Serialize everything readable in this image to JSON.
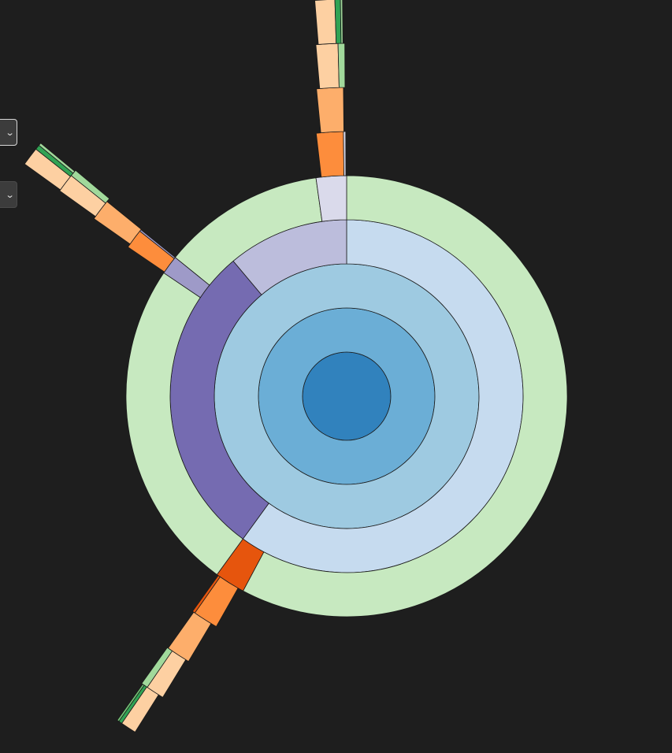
{
  "controls": [
    {
      "icon": "chevron-down-icon",
      "selected": ""
    },
    {
      "icon": "chevron-down-icon",
      "selected": ""
    }
  ],
  "chart_data": {
    "type": "sunburst",
    "title": "",
    "start_angle_deg": 0,
    "ring_width": 56,
    "root_radius": 56,
    "outline_color": "#1a1a1a",
    "colors": {
      "level0": "#3182bd",
      "level1": "#6baed6",
      "level2": "#9ecae1",
      "level3_blue": "#c6dbef",
      "level3_purple": "#bcbddc",
      "level4_green": "#c7e9c0",
      "purple_dark": "#756bb1",
      "purple_mid": "#9e9ac8",
      "purple_light": "#dadaeb",
      "orange_dark": "#e6550d",
      "orange": "#fd8d3c",
      "orange_light": "#fdae6b",
      "peach": "#fdd0a2",
      "green": "#31a354",
      "green_mid": "#74c476",
      "green_light": "#a1d99b"
    },
    "segments": [
      {
        "depth": 0,
        "start": 0,
        "end": 360,
        "color": "level0"
      },
      {
        "depth": 1,
        "start": 0,
        "end": 360,
        "color": "level1"
      },
      {
        "depth": 2,
        "start": 0,
        "end": 360,
        "color": "level2"
      },
      {
        "depth": 3,
        "start": 0,
        "end": 216,
        "color": "level3_blue"
      },
      {
        "depth": 3,
        "start": 216,
        "end": 320,
        "color": "purple_dark"
      },
      {
        "depth": 3,
        "start": 320,
        "end": 360,
        "color": "level3_purple"
      },
      {
        "depth": 4,
        "start": 0,
        "end": 208,
        "color": "level4_green"
      },
      {
        "depth": 4,
        "start": 208,
        "end": 216,
        "color": "orange_dark"
      },
      {
        "depth": 4,
        "start": 216,
        "end": 304,
        "color": "level4_green"
      },
      {
        "depth": 4,
        "start": 304,
        "end": 309,
        "color": "purple_mid"
      },
      {
        "depth": 4,
        "start": 309,
        "end": 352,
        "color": "level4_green"
      },
      {
        "depth": 4,
        "start": 352,
        "end": 360,
        "color": "purple_light"
      },
      {
        "depth": 5,
        "start": 209.5,
        "end": 215,
        "color": "orange"
      },
      {
        "depth": 5,
        "start": 215,
        "end": 215.6,
        "color": "orange_dark"
      },
      {
        "depth": 5,
        "start": 304.3,
        "end": 308.6,
        "color": "orange"
      },
      {
        "depth": 5,
        "start": 308.6,
        "end": 309,
        "color": "purple_mid"
      },
      {
        "depth": 5,
        "start": 353.4,
        "end": 359.3,
        "color": "orange"
      },
      {
        "depth": 5,
        "start": 359.3,
        "end": 359.8,
        "color": "purple_light"
      },
      {
        "depth": 6,
        "start": 210.8,
        "end": 215.3,
        "color": "orange_light"
      },
      {
        "depth": 6,
        "start": 305.1,
        "end": 309.1,
        "color": "orange_light"
      },
      {
        "depth": 6,
        "start": 354.4,
        "end": 359.4,
        "color": "orange_light"
      },
      {
        "depth": 7,
        "start": 211.4,
        "end": 214.4,
        "color": "peach"
      },
      {
        "depth": 7,
        "start": 214.4,
        "end": 215.5,
        "color": "green_light"
      },
      {
        "depth": 7,
        "start": 305.6,
        "end": 308.7,
        "color": "peach"
      },
      {
        "depth": 7,
        "start": 308.7,
        "end": 309.8,
        "color": "green_light"
      },
      {
        "depth": 7,
        "start": 355.0,
        "end": 358.6,
        "color": "peach"
      },
      {
        "depth": 7,
        "start": 358.6,
        "end": 359.7,
        "color": "green_light"
      },
      {
        "depth": 8,
        "start": 212.2,
        "end": 214.5,
        "color": "peach"
      },
      {
        "depth": 8,
        "start": 214.5,
        "end": 215.0,
        "color": "green"
      },
      {
        "depth": 8,
        "start": 215.0,
        "end": 215.3,
        "color": "green_mid"
      },
      {
        "depth": 8,
        "start": 305.8,
        "end": 308.5,
        "color": "peach"
      },
      {
        "depth": 8,
        "start": 308.5,
        "end": 309.2,
        "color": "green"
      },
      {
        "depth": 8,
        "start": 309.2,
        "end": 309.6,
        "color": "green_light"
      },
      {
        "depth": 8,
        "start": 355.4,
        "end": 358.3,
        "color": "peach"
      },
      {
        "depth": 8,
        "start": 358.3,
        "end": 359.1,
        "color": "green"
      },
      {
        "depth": 8,
        "start": 359.1,
        "end": 359.4,
        "color": "green_light"
      }
    ]
  }
}
